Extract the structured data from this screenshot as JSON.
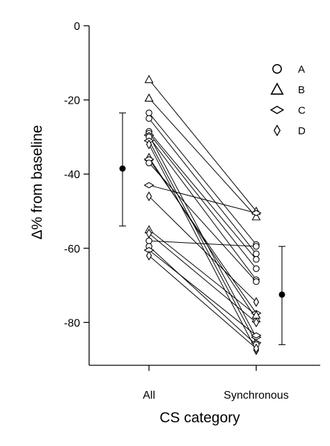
{
  "chart_data": {
    "type": "scatter",
    "title": "",
    "xlabel": "CS category",
    "ylabel": "Δ% from baseline",
    "categories": [
      "All",
      "Synchronous"
    ],
    "ylim": [
      -92,
      0
    ],
    "yticks": [
      0,
      -20,
      -40,
      -60,
      -80
    ],
    "ytick_labels": [
      "0",
      "-20",
      "-40",
      "-60",
      "-80"
    ],
    "grid": false,
    "legend_position": "top-right",
    "legend": [
      {
        "name": "A",
        "marker": "circle"
      },
      {
        "name": "B",
        "marker": "triangle"
      },
      {
        "name": "C",
        "marker": "wide-diamond"
      },
      {
        "name": "D",
        "marker": "narrow-diamond"
      }
    ],
    "paired_points": [
      {
        "group": "B",
        "all": -14.5,
        "sync": -50
      },
      {
        "group": "B",
        "all": -19.5,
        "sync": -51.5
      },
      {
        "group": "A",
        "all": -23.5,
        "sync": -59
      },
      {
        "group": "A",
        "all": -25,
        "sync": -61.5
      },
      {
        "group": "A",
        "all": -28.5,
        "sync": -63
      },
      {
        "group": "A",
        "all": -29,
        "sync": -65.5
      },
      {
        "group": "C",
        "all": -29.5,
        "sync": -84
      },
      {
        "group": "A",
        "all": -30,
        "sync": -68.5
      },
      {
        "group": "C",
        "all": -31,
        "sync": -85.5
      },
      {
        "group": "D",
        "all": -32,
        "sync": -87.5
      },
      {
        "group": "B",
        "all": -35.5,
        "sync": -79
      },
      {
        "group": "C",
        "all": -36,
        "sync": -77.5
      },
      {
        "group": "A",
        "all": -37,
        "sync": -69
      },
      {
        "group": "C",
        "all": -43,
        "sync": -50.5
      },
      {
        "group": "D",
        "all": -46,
        "sync": -74.5
      },
      {
        "group": "B",
        "all": -55,
        "sync": -78
      },
      {
        "group": "D",
        "all": -56,
        "sync": -80
      },
      {
        "group": "A",
        "all": -58,
        "sync": -59.5
      },
      {
        "group": "A",
        "all": -59.5,
        "sync": -86
      },
      {
        "group": "C",
        "all": -60.5,
        "sync": -83.5
      },
      {
        "group": "D",
        "all": -62,
        "sync": -87
      }
    ],
    "summary": [
      {
        "category": "All",
        "mean": -38.5,
        "low": -54,
        "high": -23.5
      },
      {
        "category": "Synchronous",
        "mean": -72.5,
        "low": -86,
        "high": -59.5
      }
    ]
  }
}
